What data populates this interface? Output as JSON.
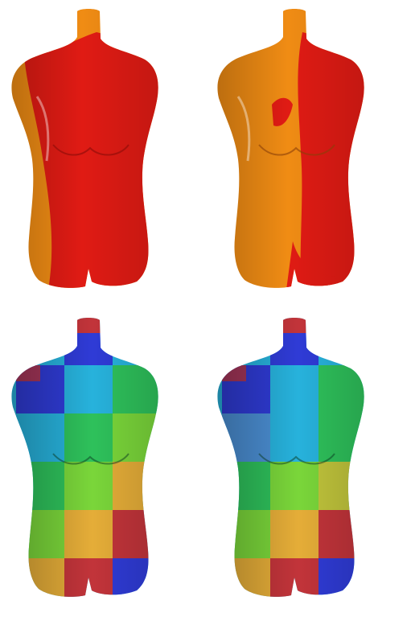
{
  "figure": {
    "panels": [
      {
        "id": "top-left",
        "style": "two-tone",
        "colors": [
          "#e01b14",
          "#f08c14"
        ]
      },
      {
        "id": "top-right",
        "style": "two-tone",
        "colors": [
          "#f08c14",
          "#e01b14"
        ]
      },
      {
        "id": "bottom-left",
        "style": "checker-texture"
      },
      {
        "id": "bottom-right",
        "style": "checker-texture"
      }
    ],
    "palette": {
      "red": "#e01b14",
      "orange": "#f08c14",
      "checker": [
        "#2f3bd6",
        "#27b2dc",
        "#2ec15b",
        "#7ad63a",
        "#c0c43b",
        "#e5ad38",
        "#c2343a",
        "#4b8fd4"
      ]
    }
  }
}
